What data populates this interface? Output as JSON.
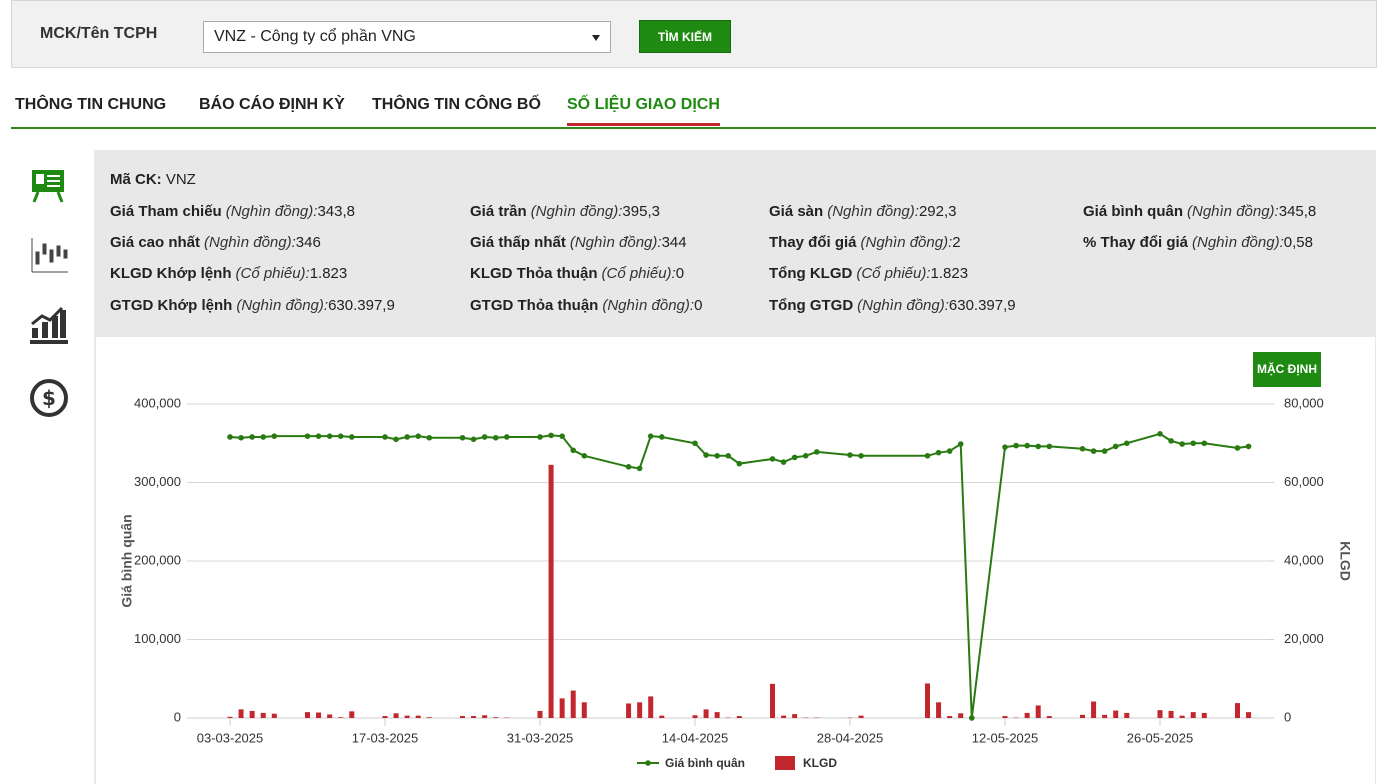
{
  "search": {
    "label": "MCK/Tên TCPH",
    "selected": "VNZ - Công ty cổ phần VNG",
    "button": "TÌM KIẾM"
  },
  "tabs": {
    "items": [
      "THÔNG TIN CHUNG",
      "BÁO CÁO ĐỊNH KỲ",
      "THÔNG TIN CÔNG BỐ",
      "SỐ LIỆU GIAO DỊCH"
    ],
    "active": 3
  },
  "info": {
    "code_label": "Mã CK:",
    "code": "VNZ",
    "rows": [
      [
        {
          "label": "Giá Tham chiếu",
          "unit": "(Nghìn đồng):",
          "value": "343,8"
        },
        {
          "label": "Giá trần",
          "unit": "(Nghìn đồng):",
          "value": "395,3"
        },
        {
          "label": "Giá sàn",
          "unit": "(Nghìn đồng):",
          "value": "292,3"
        },
        {
          "label": "Giá bình quân",
          "unit": "(Nghìn đồng):",
          "value": "345,8"
        }
      ],
      [
        {
          "label": "Giá cao nhất",
          "unit": "(Nghìn đồng):",
          "value": "346"
        },
        {
          "label": "Giá thấp nhất",
          "unit": "(Nghìn đồng):",
          "value": "344"
        },
        {
          "label": "Thay đổi giá",
          "unit": "(Nghìn đồng):",
          "value": "2"
        },
        {
          "label": "% Thay đổi giá",
          "unit": "(Nghìn đồng):",
          "value": "0,58"
        }
      ],
      [
        {
          "label": "KLGD Khớp lệnh",
          "unit": "(Cổ phiếu):",
          "value": "1.823"
        },
        {
          "label": "KLGD Thỏa thuận",
          "unit": "(Cổ phiếu):",
          "value": "0"
        },
        {
          "label": "Tổng KLGD",
          "unit": "(Cổ phiếu):",
          "value": "1.823"
        }
      ],
      [
        {
          "label": "GTGD Khớp lệnh",
          "unit": "(Nghìn đồng):",
          "value": "630.397,9"
        },
        {
          "label": "GTGD Thỏa thuận",
          "unit": "(Nghìn đồng):",
          "value": "0"
        },
        {
          "label": "Tổng GTGD",
          "unit": "(Nghìn đồng):",
          "value": "630.397,9"
        }
      ]
    ]
  },
  "chart_data": {
    "type": "combo",
    "reset_button": "MẶC ĐỊNH",
    "ylabel": "Giá bình quân",
    "y2label": "KLGD",
    "x": [
      "03-03-2025",
      "04-03-2025",
      "05-03-2025",
      "06-03-2025",
      "07-03-2025",
      "10-03-2025",
      "11-03-2025",
      "12-03-2025",
      "13-03-2025",
      "14-03-2025",
      "17-03-2025",
      "18-03-2025",
      "19-03-2025",
      "20-03-2025",
      "21-03-2025",
      "24-03-2025",
      "25-03-2025",
      "26-03-2025",
      "27-03-2025",
      "28-03-2025",
      "31-03-2025",
      "01-04-2025",
      "02-04-2025",
      "03-04-2025",
      "04-04-2025",
      "08-04-2025",
      "09-04-2025",
      "10-04-2025",
      "11-04-2025",
      "14-04-2025",
      "15-04-2025",
      "16-04-2025",
      "17-04-2025",
      "18-04-2025",
      "21-04-2025",
      "22-04-2025",
      "23-04-2025",
      "24-04-2025",
      "25-04-2025",
      "28-04-2025",
      "29-04-2025",
      "05-05-2025",
      "06-05-2025",
      "07-05-2025",
      "08-05-2025",
      "09-05-2025",
      "12-05-2025",
      "13-05-2025",
      "14-05-2025",
      "15-05-2025",
      "16-05-2025",
      "19-05-2025",
      "20-05-2025",
      "21-05-2025",
      "22-05-2025",
      "23-05-2025",
      "26-05-2025",
      "27-05-2025",
      "28-05-2025",
      "29-05-2025",
      "30-05-2025",
      "02-06-2025",
      "03-06-2025"
    ],
    "xticks": [
      "03-03-2025",
      "17-03-2025",
      "31-03-2025",
      "14-04-2025",
      "28-04-2025",
      "12-05-2025",
      "26-05-2025"
    ],
    "series": [
      {
        "name": "Giá bình quân",
        "type": "line",
        "color": "#2a7a12",
        "values": [
          358000,
          357000,
          358000,
          358000,
          359000,
          359000,
          359000,
          359000,
          359000,
          358000,
          358000,
          355000,
          358000,
          359000,
          357000,
          357000,
          355000,
          358000,
          357000,
          358000,
          358000,
          360000,
          359000,
          341000,
          334000,
          320000,
          318000,
          359000,
          358000,
          350000,
          335000,
          334000,
          334000,
          324000,
          330000,
          326000,
          332000,
          334000,
          339000,
          335000,
          334000,
          334000,
          338000,
          340000,
          349000,
          0,
          345000,
          347000,
          347000,
          346000,
          346000,
          343000,
          340000,
          340000,
          346000,
          350000,
          362000,
          353000,
          349000,
          350000,
          350000,
          344000,
          346000
        ]
      },
      {
        "name": "KLGD",
        "type": "bar",
        "axis": "y2",
        "color": "#c1272d",
        "values": [
          300,
          2200,
          1800,
          1300,
          1100,
          1500,
          1400,
          900,
          200,
          1700,
          500,
          1200,
          600,
          600,
          200,
          500,
          500,
          700,
          200,
          100,
          1800,
          64500,
          5000,
          7000,
          4000,
          3700,
          4000,
          5500,
          600,
          700,
          2200,
          1500,
          100,
          500,
          8700,
          600,
          1000,
          100,
          100,
          100,
          600,
          8800,
          4000,
          500,
          1200,
          300,
          500,
          100,
          1300,
          3200,
          500,
          800,
          4200,
          800,
          1900,
          1300,
          2000,
          1800,
          600,
          1500,
          1300,
          3800,
          1500
        ]
      }
    ],
    "ylim": [
      0,
      400000
    ],
    "yticks": [
      0,
      {
        "value": 100000,
        "label": "100,000"
      },
      {
        "value": 200000,
        "label": "200,000"
      },
      {
        "value": 300000,
        "label": "300,000"
      },
      {
        "value": 400000,
        "label": "400,000"
      }
    ],
    "y2lim": [
      0,
      80000
    ],
    "y2ticks": [
      0,
      {
        "value": 20000,
        "label": "20,000"
      },
      {
        "value": 40000,
        "label": "40,000"
      },
      {
        "value": 60000,
        "label": "60,000"
      },
      {
        "value": 80000,
        "label": "80,000"
      }
    ],
    "grid": true
  }
}
